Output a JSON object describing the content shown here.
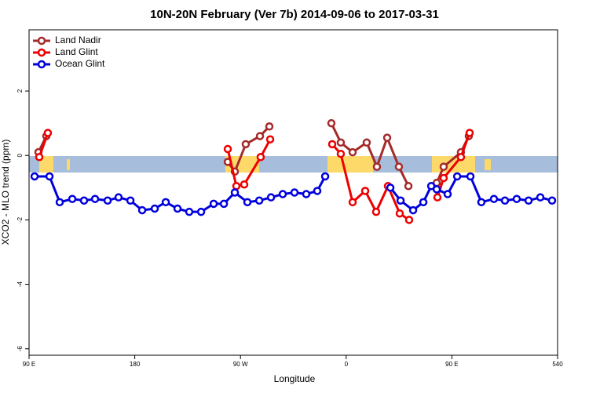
{
  "chart_data": {
    "type": "line",
    "title": "10N-20N February (Ver 7b)   2014-09-06 to 2017-03-31",
    "x_label": "Longitude",
    "y_label": "XCO2 - MLO trend (ppm)",
    "xlim": [
      90,
      540
    ],
    "ylim": [
      -6.2,
      3.9
    ],
    "xticks": [
      {
        "value": 90,
        "label": "90 E"
      },
      180,
      {
        "value": 270,
        "label": "90 W"
      },
      {
        "value": 360,
        "label": "0"
      },
      {
        "value": 450,
        "label": "90 E"
      },
      540
    ],
    "yticks": [
      -6,
      -4,
      -2,
      0,
      2
    ],
    "legend": "top-left",
    "series": [
      {
        "name": "Land Nadir",
        "color": "#a52a2a",
        "x": [
          98,
          104.7,
          null,
          259.2,
          265.2,
          274.5,
          286.6,
          294.6,
          null,
          347.4,
          355.4,
          365.5,
          377.5,
          386.2,
          394.9,
          404.9,
          413,
          null,
          437.1,
          443,
          457.7,
          464.4
        ],
        "values": [
          0.1,
          0.6,
          null,
          -0.2,
          -0.5,
          0.35,
          0.6,
          0.9,
          null,
          1.0,
          0.4,
          0.1,
          0.4,
          -0.35,
          0.55,
          -0.35,
          -0.95,
          null,
          -0.85,
          -0.35,
          0.1,
          0.6
        ]
      },
      {
        "name": "Land Glint",
        "color": "#ee0000",
        "x": [
          98.7,
          106,
          null,
          259.2,
          266.5,
          273.2,
          287.2,
          295.3,
          null,
          348.1,
          355.4,
          365.5,
          376.2,
          385.5,
          395.6,
          405.6,
          413.6,
          null,
          437.7,
          443,
          457.7,
          465.1
        ],
        "values": [
          -0.05,
          0.7,
          null,
          0.2,
          -0.95,
          -0.9,
          -0.05,
          0.5,
          null,
          0.35,
          0.05,
          -1.45,
          -1.1,
          -1.75,
          -0.95,
          -1.8,
          -2.0,
          null,
          -1.3,
          -0.7,
          -0.05,
          0.7
        ]
      },
      {
        "name": "Ocean Glint",
        "color": "#0000dd",
        "x": [
          94.7,
          107.4,
          116.1,
          126.8,
          136.8,
          146.2,
          156.9,
          166.2,
          176.3,
          186.3,
          197,
          206.4,
          216.4,
          226.4,
          236.5,
          247.2,
          255.9,
          265.2,
          275.9,
          286,
          296,
          306,
          316,
          326,
          335.4,
          342.1,
          null,
          397.6,
          406.3,
          417,
          425.7,
          432.4,
          437.1,
          446.4,
          454.5,
          465.8,
          475.1,
          485.8,
          495.2,
          505.2,
          515.3,
          525.3,
          535.3
        ],
        "values": [
          -0.65,
          -0.65,
          -1.45,
          -1.35,
          -1.4,
          -1.35,
          -1.4,
          -1.3,
          -1.4,
          -1.7,
          -1.65,
          -1.45,
          -1.65,
          -1.75,
          -1.75,
          -1.5,
          -1.5,
          -1.15,
          -1.45,
          -1.4,
          -1.3,
          -1.2,
          -1.15,
          -1.2,
          -1.1,
          -0.65,
          null,
          -1.0,
          -1.4,
          -1.7,
          -1.45,
          -0.95,
          -1.05,
          -1.2,
          -0.65,
          -0.65,
          -1.45,
          -1.35,
          -1.4,
          -1.35,
          -1.4,
          -1.3,
          -1.4
        ]
      }
    ]
  }
}
